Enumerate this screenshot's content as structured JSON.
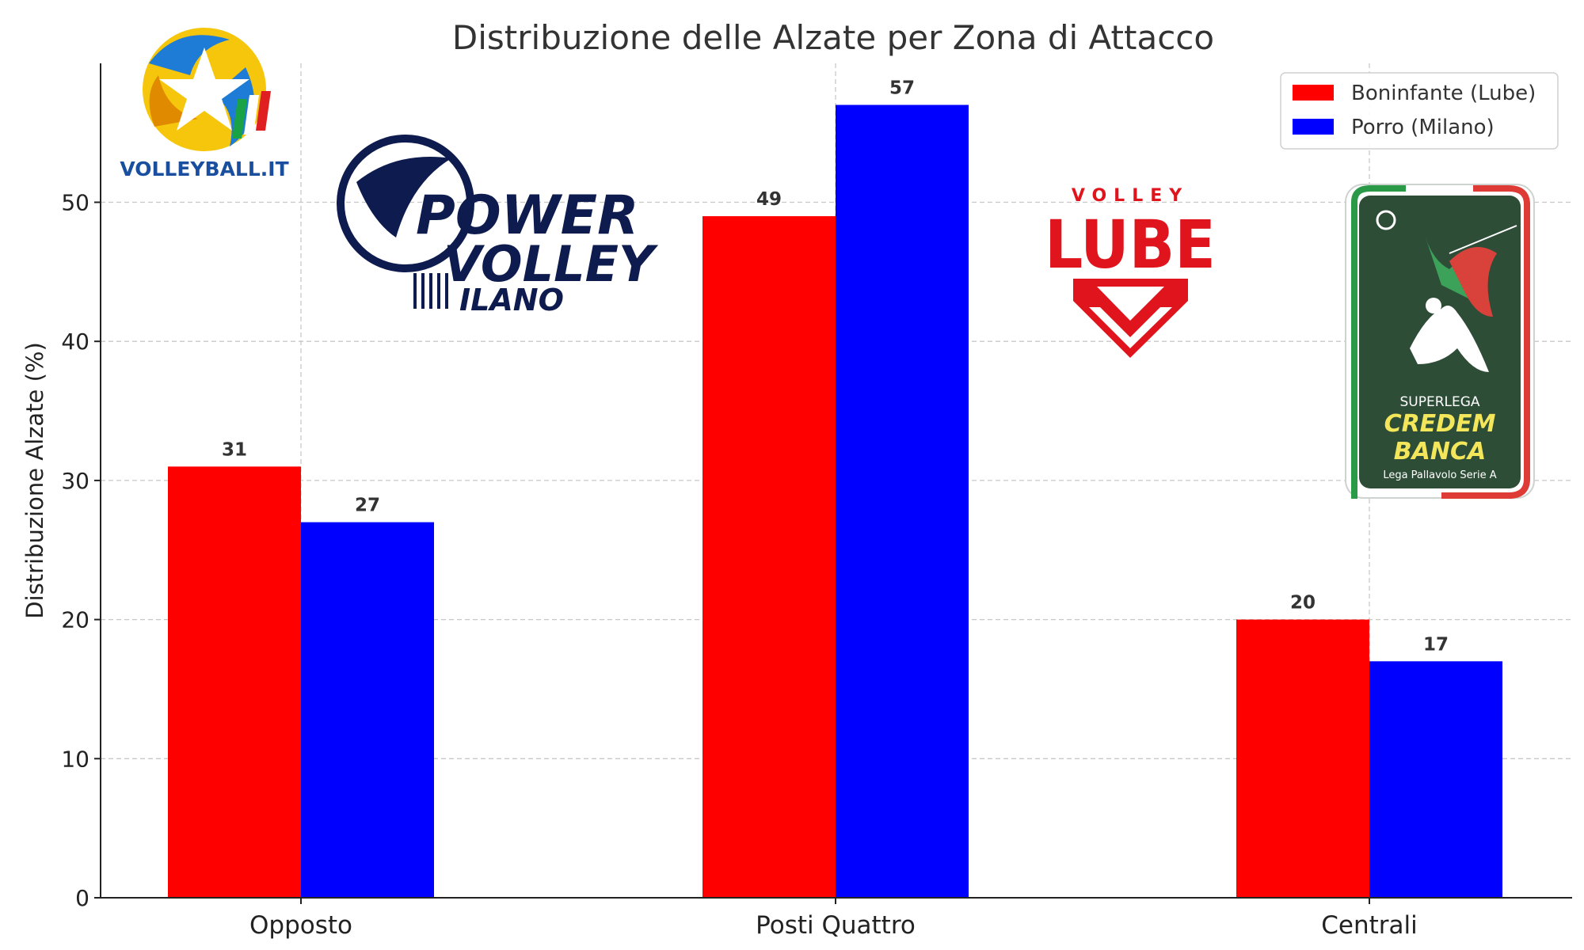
{
  "chart_data": {
    "type": "bar",
    "title": "Distribuzione delle Alzate per Zona di Attacco",
    "xlabel": "",
    "ylabel": "Distribuzione Alzate (%)",
    "categories": [
      "Opposto",
      "Posti Quattro",
      "Centrali"
    ],
    "series": [
      {
        "name": "Boninfante (Lube)",
        "color": "#ff0000",
        "values": [
          31,
          49,
          20
        ]
      },
      {
        "name": "Porro (Milano)",
        "color": "#0000ff",
        "values": [
          27,
          57,
          17
        ]
      }
    ],
    "ylim": [
      0,
      60
    ],
    "yticks": [
      0,
      10,
      20,
      30,
      40,
      50
    ],
    "grid": true,
    "legend_position": "top-right"
  },
  "logos": {
    "volleyball_it": {
      "icon": "volleyball-it-star-logo",
      "text": "VOLLEYBALL.IT"
    },
    "power_volley": {
      "icon": "power-volley-milano-logo",
      "line1": "POWER",
      "line2": "VOLLEY",
      "line3": "ILANO"
    },
    "lube": {
      "icon": "volley-lube-logo",
      "line1": "VOLLEY",
      "line2": "LUBE"
    },
    "superlega": {
      "icon": "superlega-credem-banca-logo",
      "line1": "SUPERLEGA",
      "line2": "CREDEM",
      "line3": "BANCA",
      "line4": "Lega Pallavolo Serie A"
    }
  }
}
